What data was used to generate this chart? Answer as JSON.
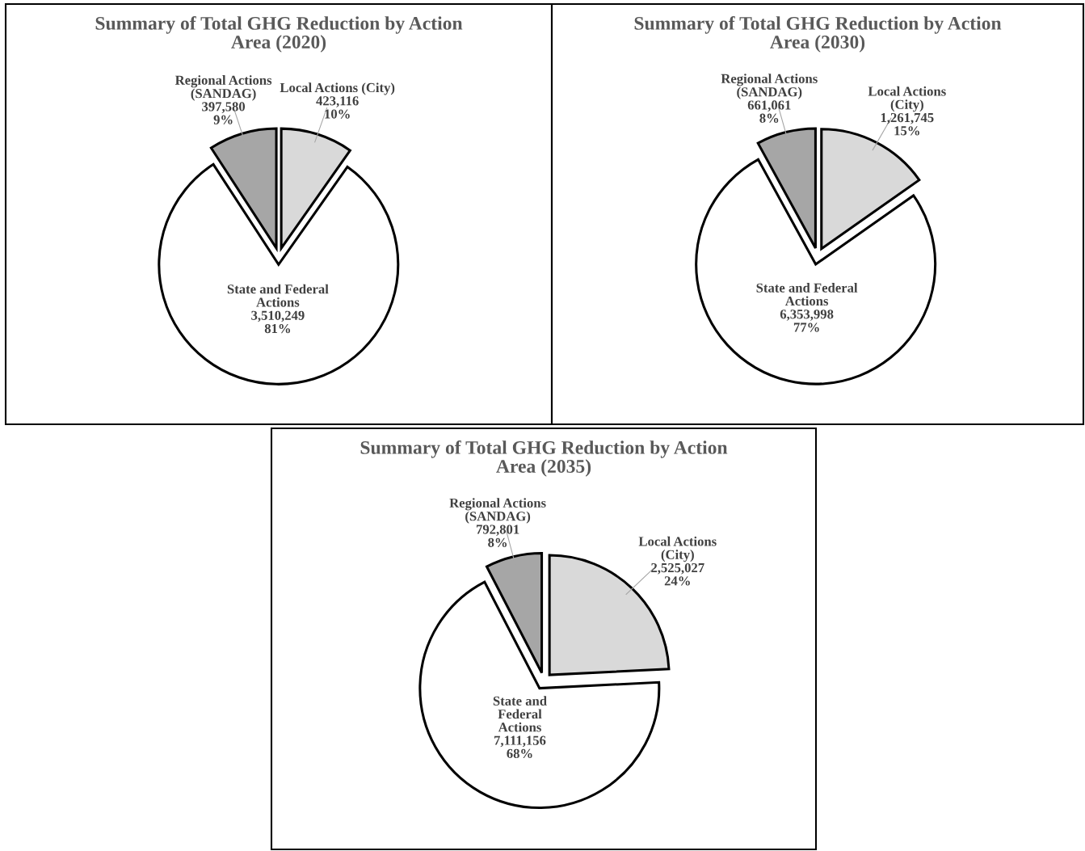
{
  "chart_data": [
    {
      "type": "pie",
      "title": "Summary of Total GHG Reduction by Action\nArea (2020)",
      "categories": [
        "Local Actions (City)",
        "State and Federal\nActions",
        "Regional Actions\n(SANDAG)"
      ],
      "values": [
        423116,
        3510249,
        397580
      ],
      "value_labels": [
        "423,116\n10%",
        "3,510,249\n81%",
        "397,580\n9%"
      ],
      "colors": [
        "#d9d9d9",
        "#ffffff",
        "#a6a6a6"
      ]
    },
    {
      "type": "pie",
      "title": "Summary of Total GHG Reduction by Action\nArea (2030)",
      "categories": [
        "Local Actions\n(City)",
        "State and Federal\nActions",
        "Regional Actions\n(SANDAG)"
      ],
      "values": [
        1261745,
        6353998,
        661061
      ],
      "value_labels": [
        "1,261,745\n15%",
        "6,353,998\n77%",
        "661,061\n8%"
      ],
      "colors": [
        "#d9d9d9",
        "#ffffff",
        "#a6a6a6"
      ]
    },
    {
      "type": "pie",
      "title": "Summary of Total GHG Reduction by Action\nArea (2035)",
      "categories": [
        "Local Actions\n(City)",
        "State and\nFederal\nActions",
        "Regional Actions\n(SANDAG)"
      ],
      "values": [
        2525027,
        7111156,
        792801
      ],
      "value_labels": [
        "2,525,027\n24%",
        "7,111,156\n68%",
        "792,801\n8%"
      ],
      "colors": [
        "#d9d9d9",
        "#ffffff",
        "#a6a6a6"
      ]
    }
  ]
}
